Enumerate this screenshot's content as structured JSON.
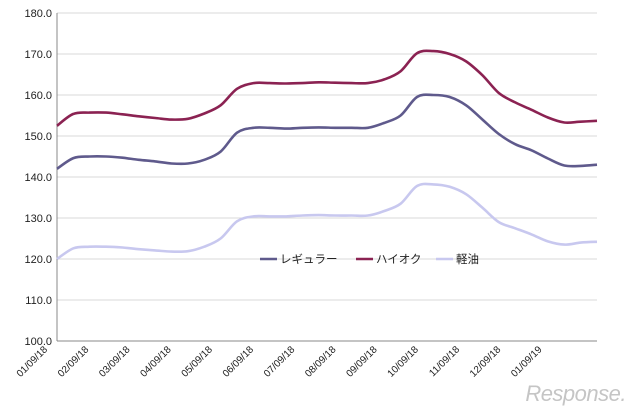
{
  "chart_data": {
    "type": "line",
    "ylim": [
      100,
      180
    ],
    "yticks": [
      "100.0",
      "110.0",
      "120.0",
      "130.0",
      "140.0",
      "150.0",
      "160.0",
      "170.0",
      "180.0"
    ],
    "xticks": [
      "01/09/18",
      "02/09/18",
      "03/09/18",
      "04/09/18",
      "05/09/18",
      "06/09/18",
      "07/09/18",
      "08/09/18",
      "09/09/18",
      "10/09/18",
      "11/09/18",
      "12/09/18",
      "01/09/19"
    ],
    "grid": "horizontal",
    "legend_position": "inside-center-right",
    "series": [
      {
        "name": "レギュラー",
        "color": "#5f5a8c",
        "values": [
          142.0,
          144.6,
          145.0,
          145.0,
          144.7,
          144.2,
          143.8,
          143.3,
          143.3,
          144.2,
          146.2,
          150.8,
          152.0,
          152.0,
          151.8,
          152.0,
          152.1,
          152.0,
          152.0,
          152.0,
          153.2,
          155.0,
          159.5,
          160.0,
          159.5,
          157.5,
          154.0,
          150.5,
          148.0,
          146.5,
          144.5,
          142.8,
          142.7,
          143.0
        ]
      },
      {
        "name": "ハイオク",
        "color": "#8b2252",
        "values": [
          152.5,
          155.4,
          155.7,
          155.7,
          155.3,
          154.8,
          154.4,
          154.0,
          154.2,
          155.5,
          157.5,
          161.5,
          162.9,
          162.9,
          162.8,
          162.9,
          163.1,
          163.0,
          162.9,
          162.9,
          163.8,
          165.8,
          170.2,
          170.7,
          170.0,
          168.2,
          164.8,
          160.5,
          158.2,
          156.4,
          154.5,
          153.3,
          153.5,
          153.7
        ]
      },
      {
        "name": "軽油",
        "color": "#c8c8ef",
        "values": [
          120.0,
          122.6,
          123.0,
          123.0,
          122.8,
          122.4,
          122.1,
          121.8,
          121.9,
          123.0,
          125.0,
          129.2,
          130.4,
          130.4,
          130.4,
          130.6,
          130.7,
          130.6,
          130.6,
          130.6,
          131.7,
          133.5,
          137.8,
          138.2,
          137.6,
          135.8,
          132.5,
          129.0,
          127.5,
          126.0,
          124.3,
          123.5,
          124.0,
          124.2
        ]
      }
    ]
  },
  "watermark": "Response."
}
